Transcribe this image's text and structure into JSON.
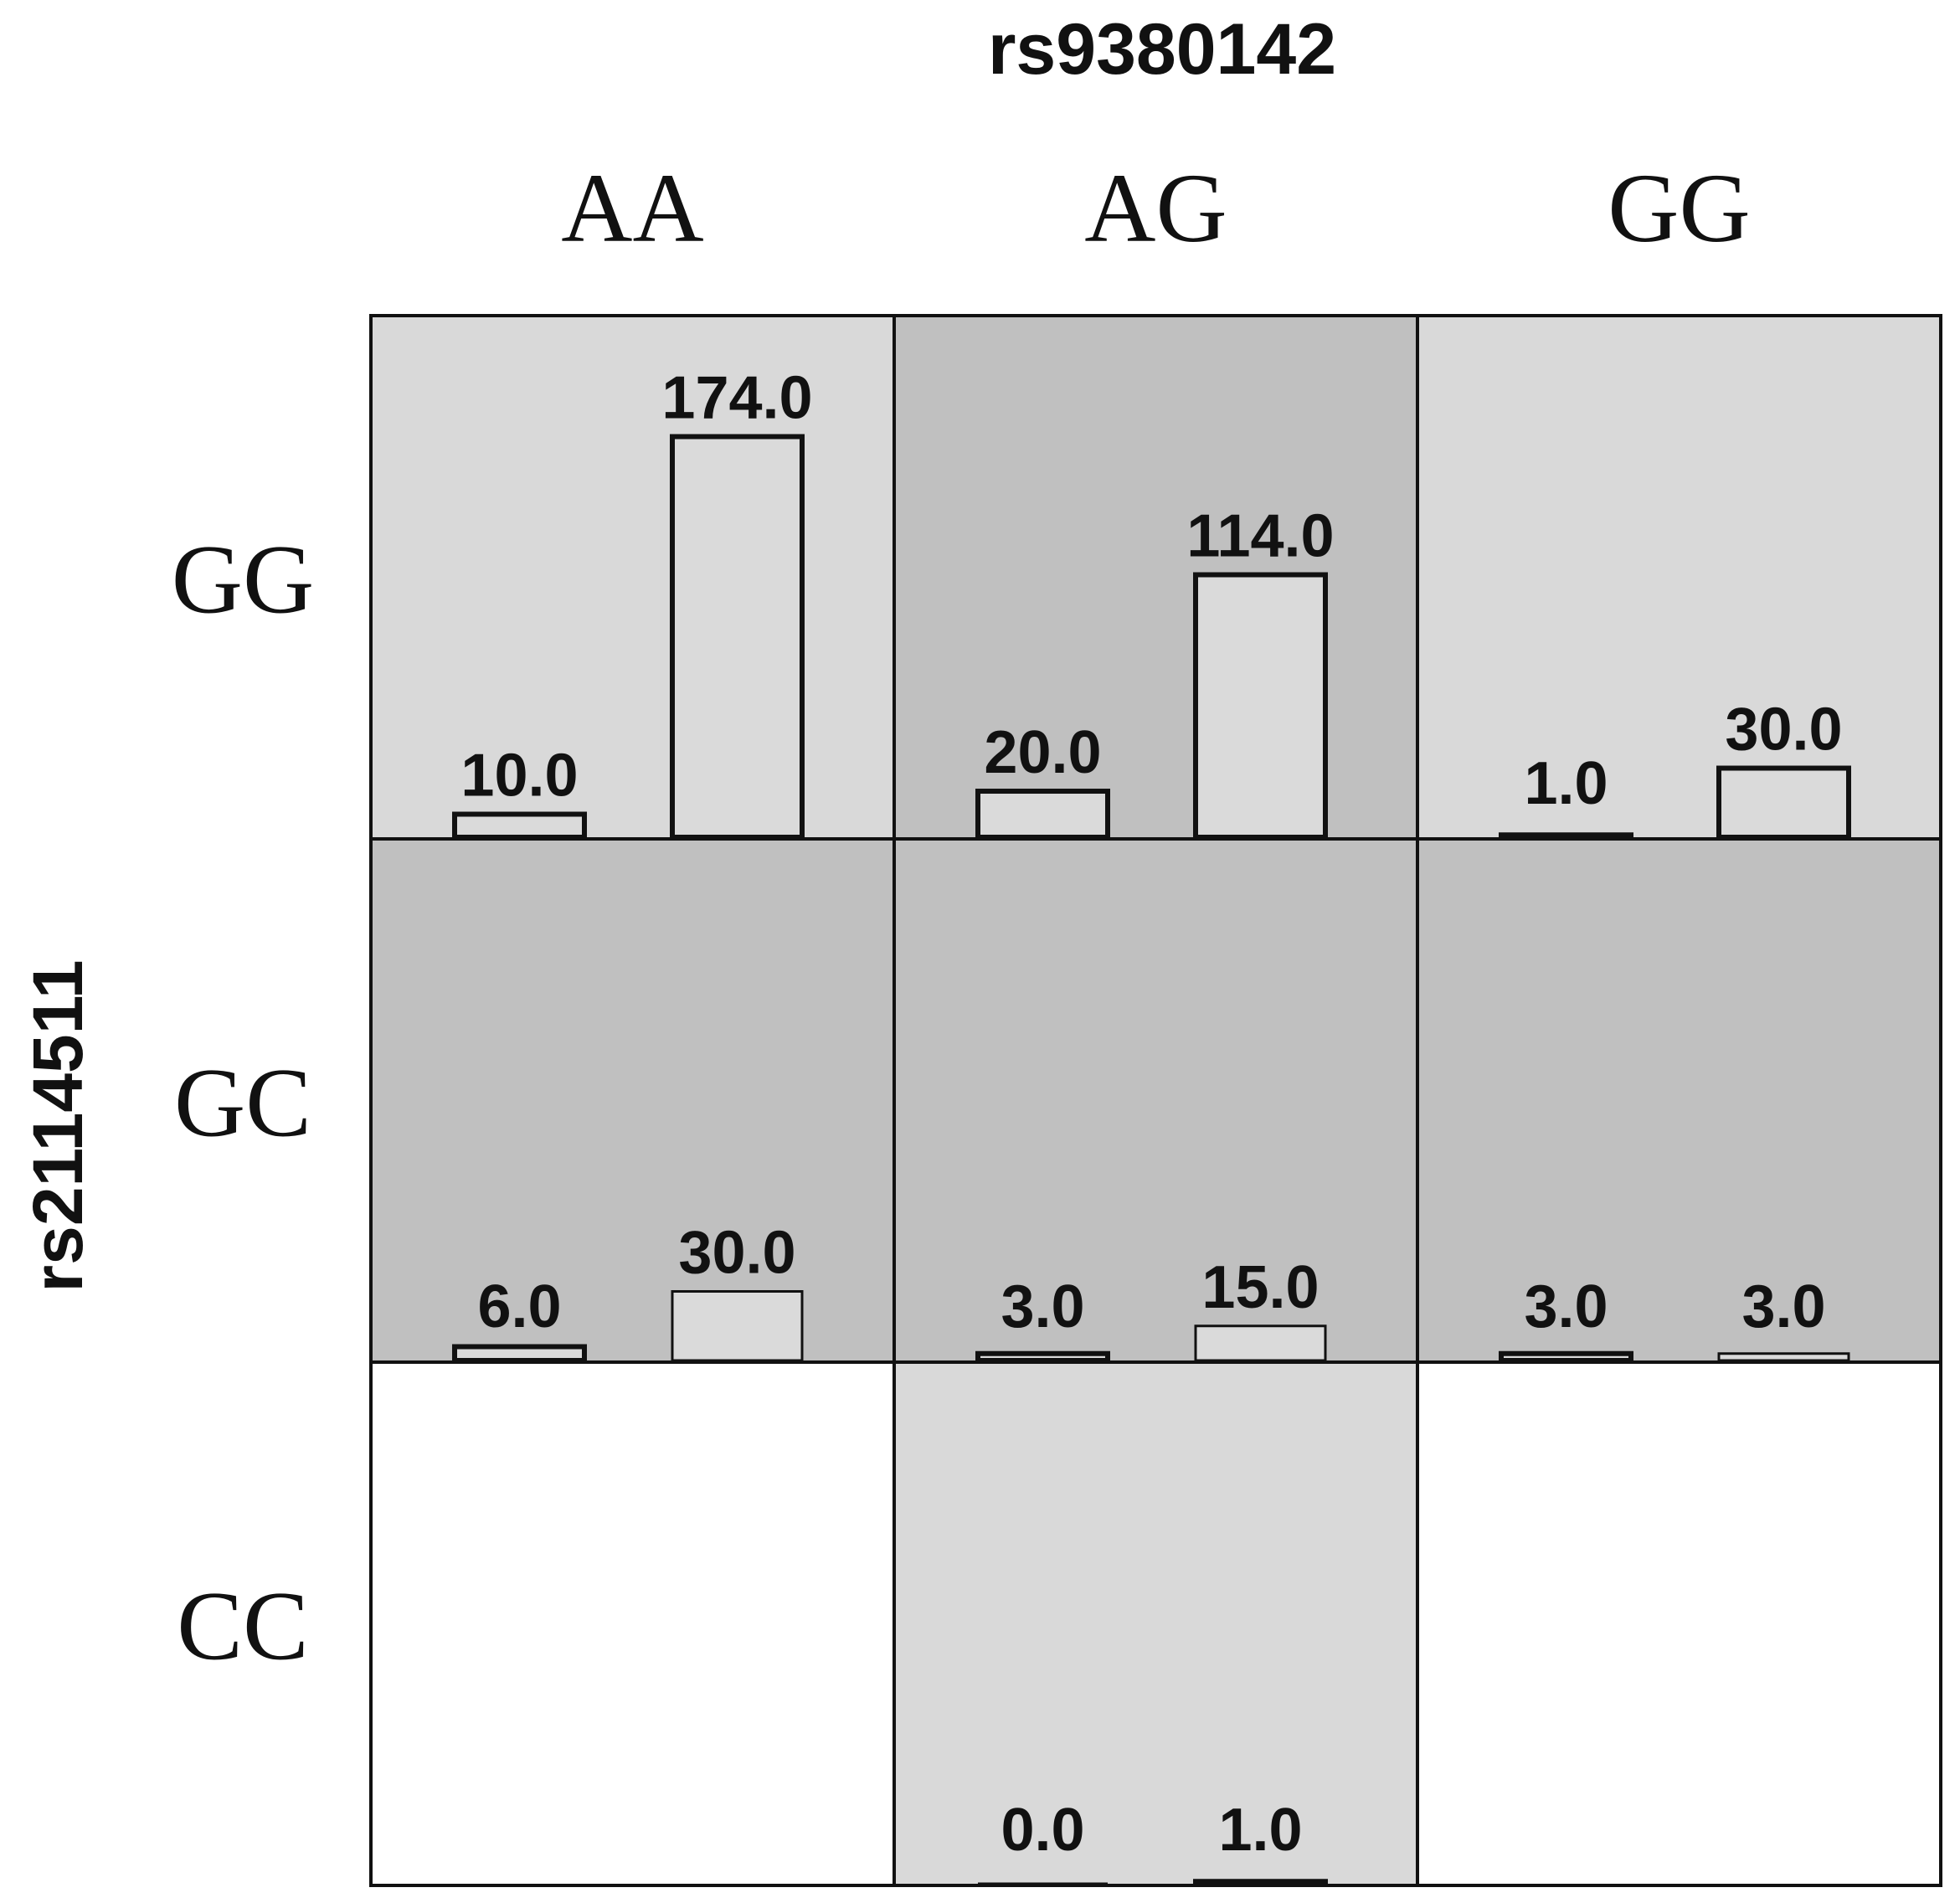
{
  "chart_data": {
    "type": "bar",
    "title": "rs9380142",
    "ylabel": "rs2114511",
    "column_genotypes": [
      "AA",
      "AG",
      "GG"
    ],
    "row_genotypes": [
      "GG",
      "GC",
      "CC"
    ],
    "colors": {
      "light_cell": "#d9d9d9",
      "dark_cell": "#c0c0c0",
      "empty_cell": "#ffffff",
      "bar_fill": "#dadada",
      "border": "#111111"
    },
    "cells": [
      {
        "row": "GG",
        "col": "AA",
        "shade": "light",
        "values": [
          10.0,
          174.0
        ],
        "labels": [
          "10.0",
          "174.0"
        ]
      },
      {
        "row": "GG",
        "col": "AG",
        "shade": "dark",
        "values": [
          20.0,
          114.0
        ],
        "labels": [
          "20.0",
          "114.0"
        ]
      },
      {
        "row": "GG",
        "col": "GG",
        "shade": "light",
        "values": [
          1.0,
          30.0
        ],
        "labels": [
          "1.0",
          "30.0"
        ]
      },
      {
        "row": "GC",
        "col": "AA",
        "shade": "dark",
        "values": [
          6.0,
          30.0
        ],
        "labels": [
          "6.0",
          "30.0"
        ]
      },
      {
        "row": "GC",
        "col": "AG",
        "shade": "dark",
        "values": [
          3.0,
          15.0
        ],
        "labels": [
          "3.0",
          "15.0"
        ]
      },
      {
        "row": "GC",
        "col": "GG",
        "shade": "dark",
        "values": [
          3.0,
          3.0
        ],
        "labels": [
          "3.0",
          "3.0"
        ]
      },
      {
        "row": "CC",
        "col": "AA",
        "shade": "empty",
        "values": [],
        "labels": []
      },
      {
        "row": "CC",
        "col": "AG",
        "shade": "light",
        "values": [
          0.0,
          1.0
        ],
        "labels": [
          "0.0",
          "1.0"
        ]
      },
      {
        "row": "CC",
        "col": "GG",
        "shade": "empty",
        "values": [],
        "labels": []
      }
    ]
  }
}
